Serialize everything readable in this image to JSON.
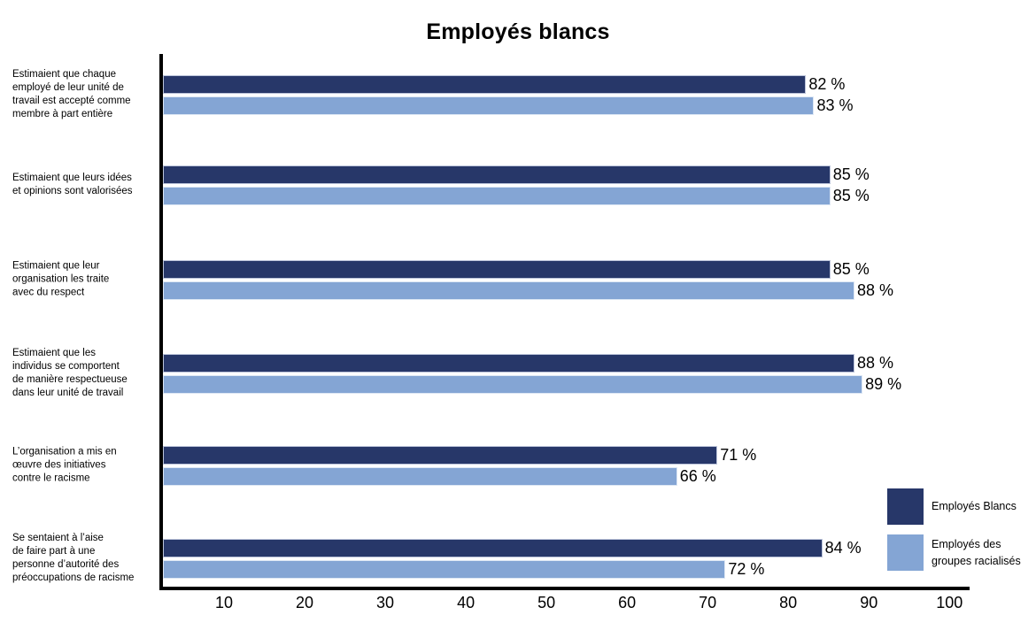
{
  "title": "Employés blancs",
  "colors": {
    "series_dark": "#273769",
    "series_light": "#84a5d4",
    "bar_border_dark": "#bcc4da",
    "bar_border_light": "#dde7f4",
    "axis": "#000000",
    "text": "#000000"
  },
  "legend": {
    "items": [
      {
        "label": "Employés Blancs",
        "color": "#273769"
      },
      {
        "label": "Employés des\ngroupes racialisés",
        "color": "#84a5d4"
      }
    ]
  },
  "x_axis": {
    "tick_labels": [
      "10",
      "20",
      "30",
      "40",
      "50",
      "60",
      "70",
      "80",
      "90",
      "100"
    ]
  },
  "chart_data": {
    "type": "bar",
    "orientation": "horizontal",
    "title": "Employés blancs",
    "categories": [
      "Estimaient que chaque\nemployé de leur unité de\ntravail est accepté comme\nmembre à part entière",
      "Estimaient que leurs idées\net opinions sont valorisées",
      "Estimaient que leur\norganisation les traite\navec du respect",
      "Estimaient que les\nindividus se comportent\nde manière respectueuse\ndans leur unité de travail",
      "L’organisation a mis en\nœuvre des initiatives\ncontre le racisme",
      "Se sentaient à l’aise\nde faire part à une\npersonne d’autorité des\npréoccupations de racisme"
    ],
    "series": [
      {
        "name": "Employés Blancs",
        "color": "#273769",
        "values": [
          82,
          85,
          85,
          88,
          71,
          84
        ],
        "value_labels": [
          "82 %",
          "85 %",
          "85 %",
          "88 %",
          "71 %",
          "84 %"
        ]
      },
      {
        "name": "Employés des groupes racialisés",
        "color": "#84a5d4",
        "values": [
          83,
          85,
          88,
          89,
          66,
          72
        ],
        "value_labels": [
          "83 %",
          "85 %",
          "88 %",
          "89 %",
          "66 %",
          "72 %"
        ]
      }
    ],
    "x_ticks": [
      10,
      20,
      30,
      40,
      50,
      60,
      70,
      80,
      90,
      100
    ],
    "xlim": [
      0,
      100
    ],
    "grid": false,
    "legend_position": "bottom-right",
    "value_label_format": "{value} %"
  }
}
